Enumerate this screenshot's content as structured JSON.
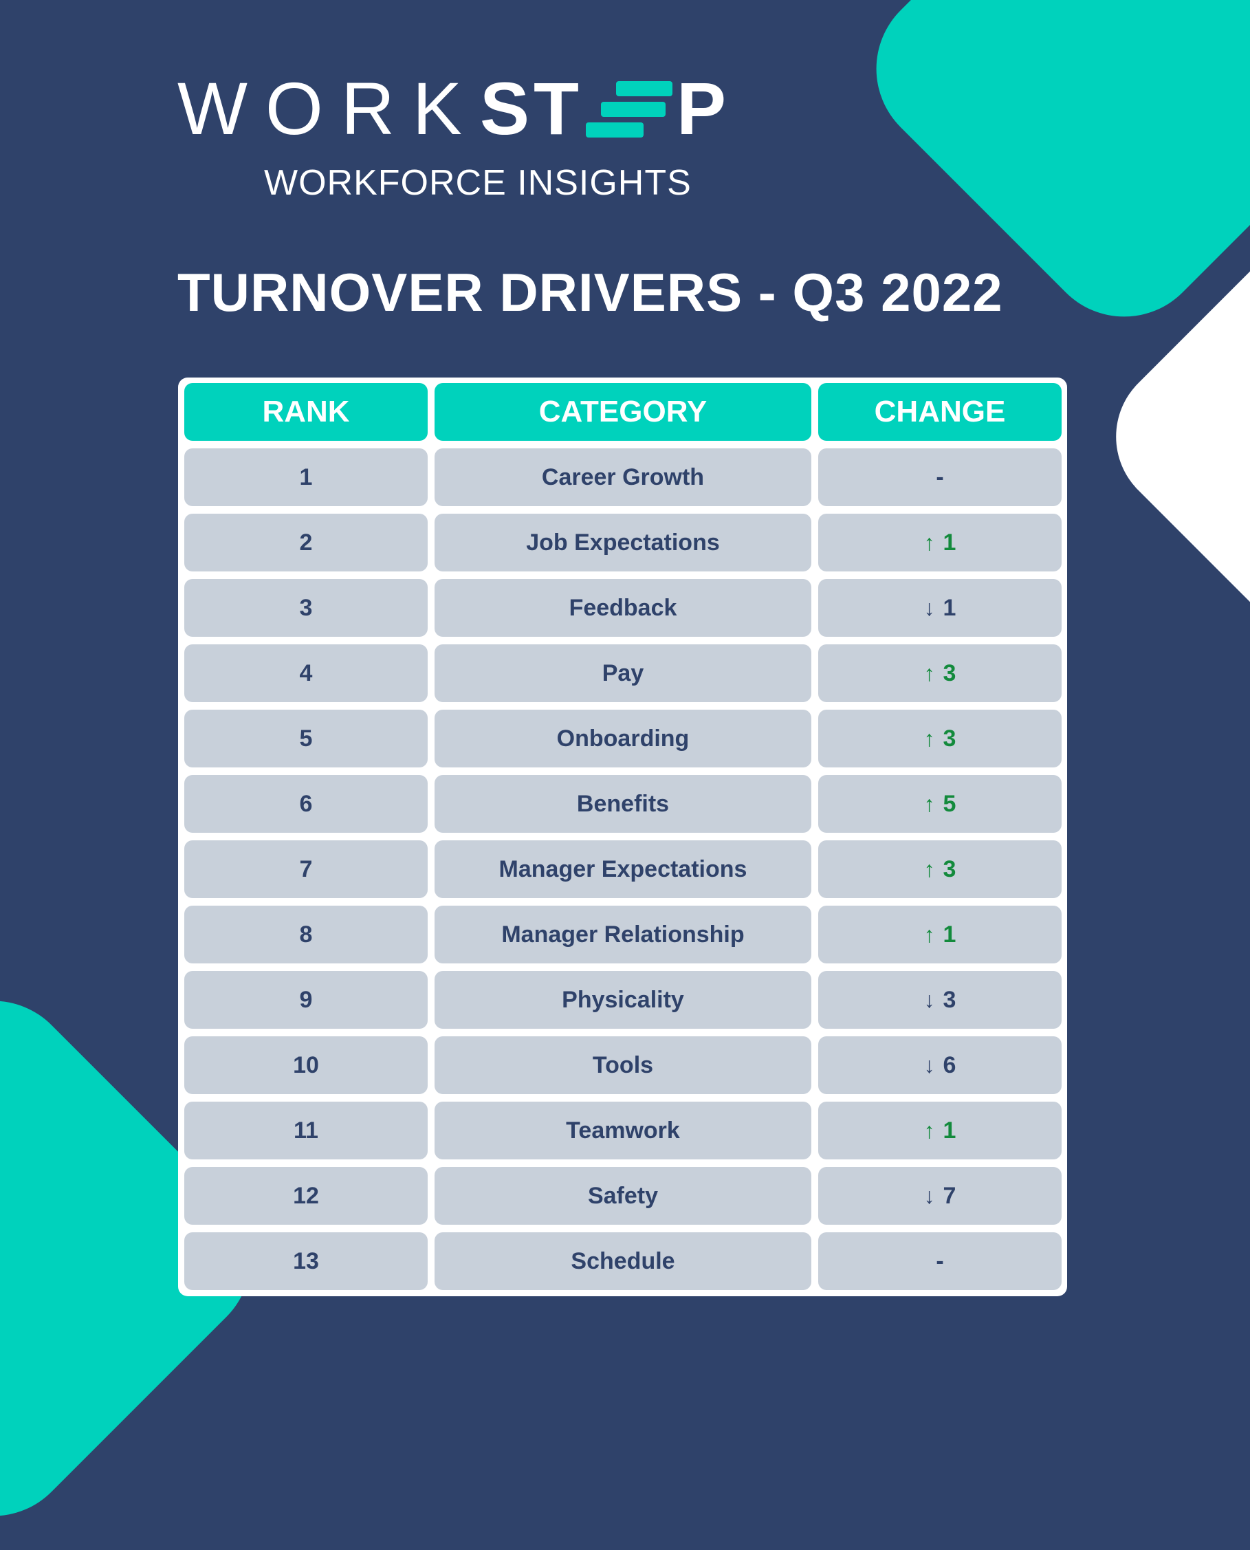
{
  "brand": {
    "logo_part1": "WORK",
    "logo_part2": "ST",
    "logo_part3": "P",
    "subtitle": "WORKFORCE INSIGHTS",
    "accent_color": "#00d2bc",
    "background_color": "#2f426a"
  },
  "heading": "TURNOVER DRIVERS - Q3 2022",
  "table": {
    "headers": [
      "RANK",
      "CATEGORY",
      "CHANGE"
    ],
    "rows": [
      {
        "rank": "1",
        "category": "Career Growth",
        "change": "-",
        "direction": "none"
      },
      {
        "rank": "2",
        "category": "Job Expectations",
        "change": "1",
        "direction": "up"
      },
      {
        "rank": "3",
        "category": "Feedback",
        "change": "1",
        "direction": "down"
      },
      {
        "rank": "4",
        "category": "Pay",
        "change": "3",
        "direction": "up"
      },
      {
        "rank": "5",
        "category": "Onboarding",
        "change": "3",
        "direction": "up"
      },
      {
        "rank": "6",
        "category": "Benefits",
        "change": "5",
        "direction": "up"
      },
      {
        "rank": "7",
        "category": "Manager Expectations",
        "change": "3",
        "direction": "up"
      },
      {
        "rank": "8",
        "category": "Manager Relationship",
        "change": "1",
        "direction": "up"
      },
      {
        "rank": "9",
        "category": "Physicality",
        "change": "3",
        "direction": "down"
      },
      {
        "rank": "10",
        "category": "Tools",
        "change": "6",
        "direction": "down"
      },
      {
        "rank": "11",
        "category": "Teamwork",
        "change": "1",
        "direction": "up"
      },
      {
        "rank": "12",
        "category": "Safety",
        "change": "7",
        "direction": "down"
      },
      {
        "rank": "13",
        "category": "Schedule",
        "change": "-",
        "direction": "none"
      }
    ],
    "up_color": "#138a3c",
    "down_color": "#2f426a"
  }
}
